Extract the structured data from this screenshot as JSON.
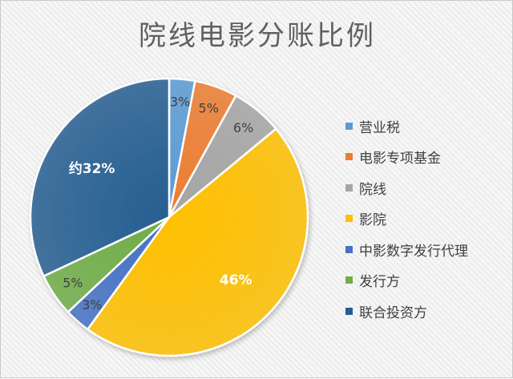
{
  "chart_data": {
    "type": "pie",
    "title": "院线电影分账比例",
    "slices": [
      {
        "name": "营业税",
        "value": 3,
        "label": "3%",
        "color": "#5b9bd5"
      },
      {
        "name": "电影专项基金",
        "value": 5,
        "label": "5%",
        "color": "#ed7d31"
      },
      {
        "name": "院线",
        "value": 6,
        "label": "6%",
        "color": "#a5a5a5"
      },
      {
        "name": "影院",
        "value": 46,
        "label": "46%",
        "color": "#ffc000"
      },
      {
        "name": "中影数字发行代理",
        "value": 3,
        "label": "3%",
        "color": "#4472c4"
      },
      {
        "name": "发行方",
        "value": 5,
        "label": "5%",
        "color": "#70ad47"
      },
      {
        "name": "联合投资方",
        "value": 32,
        "label": "约32%",
        "color": "#255e91"
      }
    ],
    "legend_position": "right"
  }
}
